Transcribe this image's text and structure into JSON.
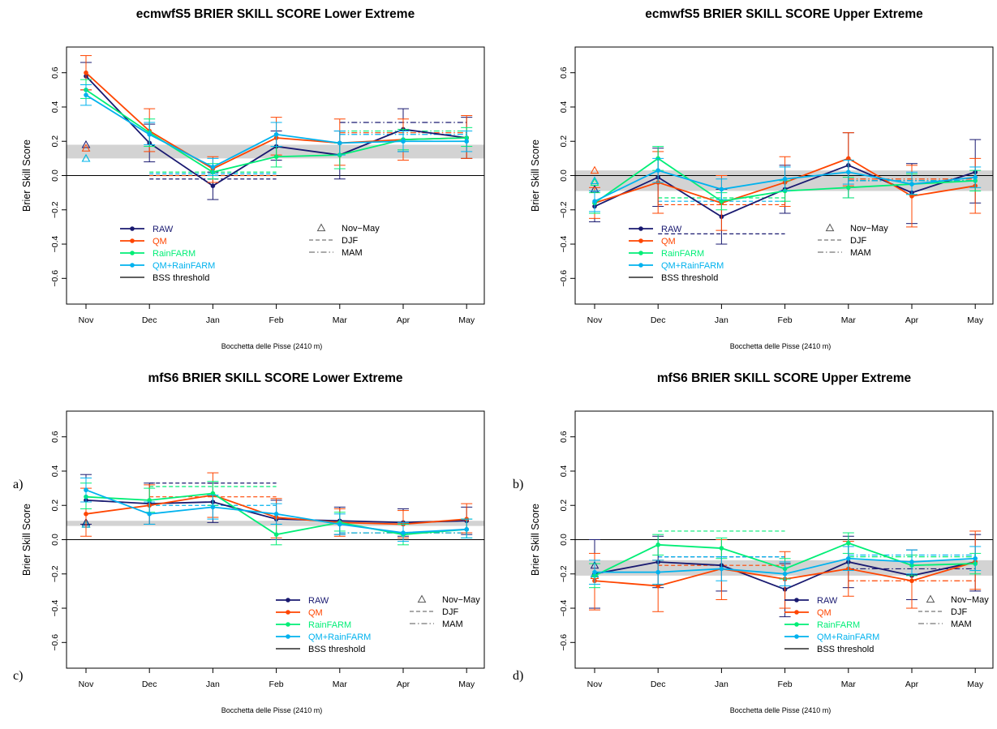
{
  "x_categories": [
    "Nov",
    "Dec",
    "Jan",
    "Feb",
    "Mar",
    "Apr",
    "May"
  ],
  "y_ticks": [
    "0.6",
    "0.4",
    "0.2",
    "0.0",
    "−0.2",
    "−0.4",
    "−0.6"
  ],
  "ylabel": "Brier Skill Score",
  "xlabel": "Bocchetta delle Pisse (2410 m)",
  "series_names": [
    "RAW",
    "QM",
    "RainFARM",
    "QM+RainFARM"
  ],
  "colors": {
    "RAW": "#191970",
    "QM": "#FF4500",
    "RainFARM": "#00EE76",
    "QM+RainFARM": "#00B2EE",
    "threshold_band": "#D3D3D3"
  },
  "legend": {
    "threshold_label": "BSS threshold",
    "season_markers": [
      "Nov−May",
      "DJF",
      "MAM"
    ]
  },
  "chart_data": [
    {
      "panel": "a)",
      "type": "line",
      "title": "ecmwfS5 BRIER SKILL SCORE Lower Extreme",
      "xlabel": "Bocchetta delle Pisse (2410 m)",
      "ylabel": "Brier Skill Score",
      "x": [
        "Nov",
        "Dec",
        "Jan",
        "Feb",
        "Mar",
        "Apr",
        "May"
      ],
      "ylim": [
        -0.75,
        0.75
      ],
      "legend_position": "bottom-left",
      "threshold_band": [
        0.1,
        0.18
      ],
      "series": [
        {
          "name": "RAW",
          "values": [
            0.58,
            0.19,
            -0.06,
            0.17,
            0.12,
            0.27,
            0.22
          ],
          "err": [
            [
              0.5,
              0.66
            ],
            [
              0.08,
              0.3
            ],
            [
              -0.14,
              0.02
            ],
            [
              0.09,
              0.26
            ],
            [
              -0.02,
              0.26
            ],
            [
              0.14,
              0.39
            ],
            [
              0.1,
              0.34
            ]
          ]
        },
        {
          "name": "QM",
          "values": [
            0.6,
            0.26,
            0.04,
            0.22,
            0.19,
            0.21,
            0.22
          ],
          "err": [
            [
              0.5,
              0.7
            ],
            [
              0.14,
              0.39
            ],
            [
              -0.04,
              0.11
            ],
            [
              0.12,
              0.34
            ],
            [
              0.06,
              0.33
            ],
            [
              0.09,
              0.33
            ],
            [
              0.1,
              0.35
            ]
          ]
        },
        {
          "name": "RainFARM",
          "values": [
            0.5,
            0.25,
            0.02,
            0.11,
            0.12,
            0.21,
            0.22
          ],
          "err": [
            [
              0.45,
              0.56
            ],
            [
              0.17,
              0.33
            ],
            [
              -0.02,
              0.07
            ],
            [
              0.05,
              0.17
            ],
            [
              0.04,
              0.19
            ],
            [
              0.15,
              0.27
            ],
            [
              0.17,
              0.28
            ]
          ]
        },
        {
          "name": "QM+RainFARM",
          "values": [
            0.47,
            0.24,
            0.05,
            0.24,
            0.19,
            0.2,
            0.2
          ],
          "err": [
            [
              0.41,
              0.53
            ],
            [
              0.18,
              0.31
            ],
            [
              0.0,
              0.1
            ],
            [
              0.17,
              0.31
            ],
            [
              0.12,
              0.26
            ],
            [
              0.14,
              0.26
            ],
            [
              0.14,
              0.26
            ]
          ]
        }
      ],
      "nov_may": [
        0.18,
        0.16,
        0.1,
        0.1
      ],
      "djf": [
        -0.02,
        0.0,
        0.02,
        0.01
      ],
      "mam": [
        0.31,
        0.25,
        0.26,
        0.24
      ]
    },
    {
      "panel": "b)",
      "type": "line",
      "title": "ecmwfS5 BRIER SKILL SCORE Upper Extreme",
      "xlabel": "Bocchetta delle Pisse (2410 m)",
      "ylabel": "Brier Skill Score",
      "x": [
        "Nov",
        "Dec",
        "Jan",
        "Feb",
        "Mar",
        "Apr",
        "May"
      ],
      "ylim": [
        -0.75,
        0.75
      ],
      "legend_position": "bottom-left",
      "threshold_band": [
        -0.09,
        0.03
      ],
      "series": [
        {
          "name": "RAW",
          "values": [
            -0.18,
            -0.01,
            -0.24,
            -0.08,
            0.06,
            -0.1,
            0.02
          ],
          "err": [
            [
              -0.27,
              -0.09
            ],
            [
              -0.18,
              0.16
            ],
            [
              -0.4,
              -0.08
            ],
            [
              -0.22,
              0.06
            ],
            [
              -0.13,
              0.25
            ],
            [
              -0.28,
              0.07
            ],
            [
              -0.16,
              0.21
            ]
          ]
        },
        {
          "name": "QM",
          "values": [
            -0.16,
            -0.04,
            -0.16,
            -0.04,
            0.1,
            -0.12,
            -0.06
          ],
          "err": [
            [
              -0.25,
              -0.07
            ],
            [
              -0.22,
              0.14
            ],
            [
              -0.32,
              0.0
            ],
            [
              -0.18,
              0.11
            ],
            [
              -0.06,
              0.25
            ],
            [
              -0.3,
              0.06
            ],
            [
              -0.22,
              0.1
            ]
          ]
        },
        {
          "name": "RainFARM",
          "values": [
            -0.16,
            0.1,
            -0.15,
            -0.09,
            -0.07,
            -0.05,
            -0.03
          ],
          "err": [
            [
              -0.22,
              -0.1
            ],
            [
              0.03,
              0.17
            ],
            [
              -0.2,
              -0.1
            ],
            [
              -0.15,
              -0.03
            ],
            [
              -0.13,
              -0.01
            ],
            [
              -0.11,
              0.01
            ],
            [
              -0.09,
              0.03
            ]
          ]
        },
        {
          "name": "QM+RainFARM",
          "values": [
            -0.15,
            0.03,
            -0.08,
            -0.02,
            0.02,
            -0.05,
            -0.01
          ],
          "err": [
            [
              -0.21,
              -0.09
            ],
            [
              -0.04,
              0.1
            ],
            [
              -0.14,
              -0.02
            ],
            [
              -0.09,
              0.05
            ],
            [
              -0.05,
              0.09
            ],
            [
              -0.11,
              0.02
            ],
            [
              -0.07,
              0.05
            ]
          ]
        }
      ],
      "nov_may": [
        -0.08,
        0.03,
        -0.04,
        -0.03
      ],
      "djf": [
        -0.34,
        -0.17,
        -0.13,
        -0.15
      ],
      "mam": [
        -0.03,
        -0.02,
        -0.03,
        -0.03
      ]
    },
    {
      "panel": "c)",
      "type": "line",
      "title": "mfS6 BRIER SKILL SCORE Lower Extreme",
      "xlabel": "Bocchetta delle Pisse (2410 m)",
      "ylabel": "Brier Skill Score",
      "x": [
        "Nov",
        "Dec",
        "Jan",
        "Feb",
        "Mar",
        "Apr",
        "May"
      ],
      "ylim": [
        -0.75,
        0.75
      ],
      "legend_position": "bottom-right",
      "threshold_band": [
        0.08,
        0.11
      ],
      "series": [
        {
          "name": "RAW",
          "values": [
            0.23,
            0.21,
            0.22,
            0.12,
            0.11,
            0.1,
            0.11
          ],
          "err": [
            [
              0.09,
              0.38
            ],
            [
              0.09,
              0.33
            ],
            [
              0.1,
              0.33
            ],
            [
              0.0,
              0.23
            ],
            [
              0.03,
              0.19
            ],
            [
              0.02,
              0.18
            ],
            [
              0.03,
              0.19
            ]
          ]
        },
        {
          "name": "QM",
          "values": [
            0.15,
            0.2,
            0.26,
            0.13,
            0.1,
            0.09,
            0.12
          ],
          "err": [
            [
              0.02,
              0.3
            ],
            [
              0.09,
              0.32
            ],
            [
              0.13,
              0.39
            ],
            [
              0.01,
              0.24
            ],
            [
              0.02,
              0.18
            ],
            [
              0.01,
              0.17
            ],
            [
              0.04,
              0.21
            ]
          ]
        },
        {
          "name": "RainFARM",
          "values": [
            0.25,
            0.23,
            0.27,
            0.03,
            0.1,
            0.03,
            0.06
          ],
          "err": [
            [
              0.18,
              0.33
            ],
            [
              0.16,
              0.3
            ],
            [
              0.2,
              0.34
            ],
            [
              -0.03,
              0.09
            ],
            [
              0.05,
              0.16
            ],
            [
              -0.03,
              0.09
            ],
            [
              0.01,
              0.12
            ]
          ]
        },
        {
          "name": "QM+RainFARM",
          "values": [
            0.29,
            0.15,
            0.19,
            0.15,
            0.09,
            0.04,
            0.06
          ],
          "err": [
            [
              0.22,
              0.36
            ],
            [
              0.09,
              0.22
            ],
            [
              0.12,
              0.26
            ],
            [
              0.09,
              0.21
            ],
            [
              0.03,
              0.15
            ],
            [
              -0.01,
              0.1
            ],
            [
              0.01,
              0.12
            ]
          ]
        }
      ],
      "nov_may": [
        0.1,
        0.09,
        0.09,
        0.09
      ],
      "djf": [
        0.33,
        0.25,
        0.31,
        0.2
      ],
      "mam": [
        0.04,
        0.04,
        0.04,
        0.04
      ]
    },
    {
      "panel": "d)",
      "type": "line",
      "title": "mfS6 BRIER SKILL SCORE Upper Extreme",
      "xlabel": "Bocchetta delle Pisse (2410 m)",
      "ylabel": "Brier Skill Score",
      "x": [
        "Nov",
        "Dec",
        "Jan",
        "Feb",
        "Mar",
        "Apr",
        "May"
      ],
      "ylim": [
        -0.75,
        0.75
      ],
      "legend_position": "bottom-right",
      "threshold_band": [
        -0.21,
        -0.12
      ],
      "series": [
        {
          "name": "RAW",
          "values": [
            -0.2,
            -0.13,
            -0.15,
            -0.29,
            -0.13,
            -0.21,
            -0.13
          ],
          "err": [
            [
              -0.4,
              0.0
            ],
            [
              -0.28,
              0.02
            ],
            [
              -0.3,
              0.0
            ],
            [
              -0.45,
              -0.14
            ],
            [
              -0.28,
              0.02
            ],
            [
              -0.35,
              -0.06
            ],
            [
              -0.3,
              0.03
            ]
          ]
        },
        {
          "name": "QM",
          "values": [
            -0.24,
            -0.27,
            -0.17,
            -0.23,
            -0.17,
            -0.24,
            -0.13
          ],
          "err": [
            [
              -0.41,
              -0.08
            ],
            [
              -0.42,
              -0.12
            ],
            [
              -0.35,
              0.0
            ],
            [
              -0.4,
              -0.07
            ],
            [
              -0.33,
              -0.01
            ],
            [
              -0.4,
              -0.09
            ],
            [
              -0.29,
              0.05
            ]
          ]
        },
        {
          "name": "RainFARM",
          "values": [
            -0.21,
            -0.03,
            -0.05,
            -0.17,
            -0.02,
            -0.15,
            -0.14
          ],
          "err": [
            [
              -0.28,
              -0.14
            ],
            [
              -0.09,
              0.03
            ],
            [
              -0.11,
              0.01
            ],
            [
              -0.23,
              -0.11
            ],
            [
              -0.08,
              0.04
            ],
            [
              -0.21,
              -0.09
            ],
            [
              -0.2,
              -0.08
            ]
          ]
        },
        {
          "name": "QM+RainFARM",
          "values": [
            -0.19,
            -0.19,
            -0.17,
            -0.2,
            -0.11,
            -0.13,
            -0.11
          ],
          "err": [
            [
              -0.26,
              -0.12
            ],
            [
              -0.26,
              -0.12
            ],
            [
              -0.24,
              -0.1
            ],
            [
              -0.27,
              -0.13
            ],
            [
              -0.18,
              -0.04
            ],
            [
              -0.2,
              -0.06
            ],
            [
              -0.18,
              -0.04
            ]
          ]
        }
      ],
      "nov_may": [
        -0.15,
        -0.21,
        -0.2,
        -0.2
      ],
      "djf": [
        -0.1,
        -0.15,
        0.05,
        -0.1
      ],
      "mam": [
        -0.17,
        -0.24,
        -0.1,
        -0.09
      ]
    }
  ]
}
